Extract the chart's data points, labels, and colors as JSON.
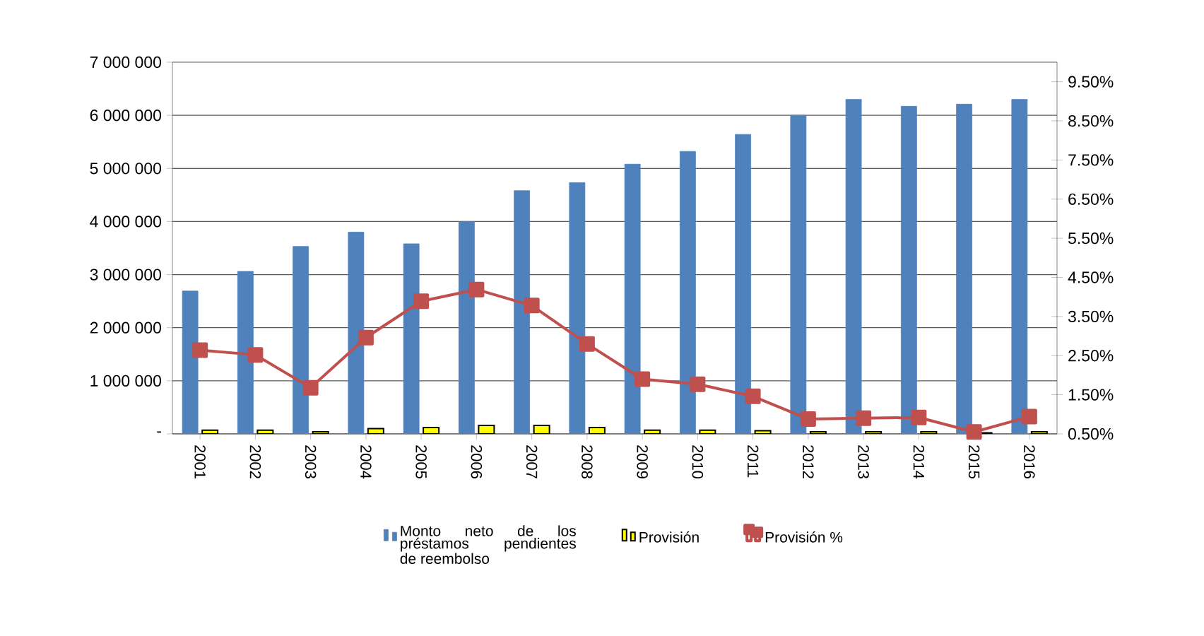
{
  "chart_data": {
    "type": "bar",
    "categories": [
      "2001",
      "2002",
      "2003",
      "2004",
      "2005",
      "2006",
      "2007",
      "2008",
      "2009",
      "2010",
      "2011",
      "2012",
      "2013",
      "2014",
      "2015",
      "2016"
    ],
    "series": [
      {
        "name": "Monto neto de los préstamos pendientes de reembolso",
        "color": "#4f81bd",
        "values": [
          2690000,
          3060000,
          3530000,
          3800000,
          3580000,
          4000000,
          4580000,
          4730000,
          5080000,
          5320000,
          5640000,
          6000000,
          6300000,
          6170000,
          6210000,
          6300000
        ]
      },
      {
        "name": "Provisión",
        "color": "#ffff00",
        "values": [
          70000,
          70000,
          40000,
          100000,
          120000,
          160000,
          160000,
          120000,
          70000,
          70000,
          60000,
          40000,
          40000,
          40000,
          20000,
          40000
        ]
      },
      {
        "name": "Provisión %",
        "type": "line",
        "axis": "y2",
        "color": "#c0504d",
        "marker": "square",
        "values": [
          2.64,
          2.52,
          1.68,
          2.96,
          3.89,
          4.19,
          3.78,
          2.8,
          1.9,
          1.77,
          1.46,
          0.88,
          0.9,
          0.92,
          0.55,
          0.94
        ]
      }
    ],
    "ylim": [
      0,
      7000000
    ],
    "yticks": [
      {
        "value": 0,
        "label": "-"
      },
      {
        "value": 1000000,
        "label": "1 000 000"
      },
      {
        "value": 2000000,
        "label": "2 000 000"
      },
      {
        "value": 3000000,
        "label": "3 000 000"
      },
      {
        "value": 4000000,
        "label": "4 000 000"
      },
      {
        "value": 5000000,
        "label": "5 000 000"
      },
      {
        "value": 6000000,
        "label": "6 000 000"
      },
      {
        "value": 7000000,
        "label": "7 000 000"
      }
    ],
    "y2lim": [
      0.5,
      10
    ],
    "y2ticks": [
      {
        "value": 0.5,
        "label": "0.50%"
      },
      {
        "value": 1.5,
        "label": "1.50%"
      },
      {
        "value": 2.5,
        "label": "2.50%"
      },
      {
        "value": 3.5,
        "label": "3.50%"
      },
      {
        "value": 4.5,
        "label": "4.50%"
      },
      {
        "value": 5.5,
        "label": "5.50%"
      },
      {
        "value": 6.5,
        "label": "6.50%"
      },
      {
        "value": 7.5,
        "label": "7.50%"
      },
      {
        "value": 8.5,
        "label": "8.50%"
      },
      {
        "value": 9.5,
        "label": "9.50%"
      }
    ],
    "grid": "y",
    "legend": "bottom"
  }
}
